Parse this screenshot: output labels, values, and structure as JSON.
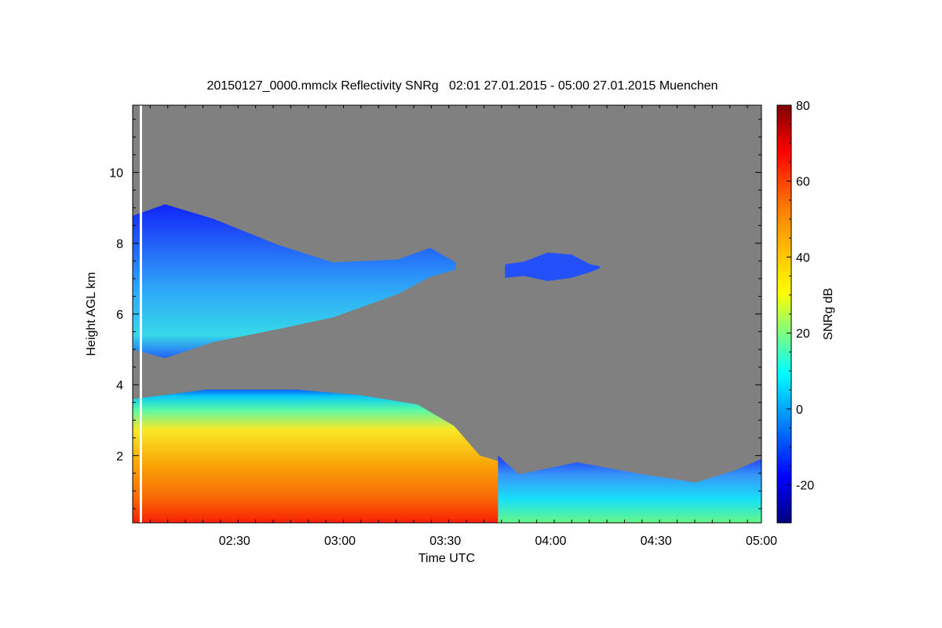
{
  "chart_data": {
    "type": "heatmap",
    "title": "20150127_0000.mmclx Reflectivity SNRg   02:01 27.01.2015 - 05:00 27.01.2015 Muenchen",
    "xlabel": "Time UTC",
    "ylabel": "Height AGL km",
    "xlim": [
      "02:01",
      "05:00"
    ],
    "ylim": [
      0.1,
      11.9
    ],
    "x_ticks": [
      "02:30",
      "03:00",
      "03:30",
      "04:00",
      "04:30",
      "05:00"
    ],
    "y_ticks": [
      2,
      4,
      6,
      8,
      10
    ],
    "colorbar": {
      "label": "SNRg dB",
      "range": [
        -30,
        80
      ],
      "ticks": [
        -20,
        0,
        20,
        40,
        60,
        80
      ],
      "colormap": "jet"
    },
    "background_color": "#808080",
    "features": [
      {
        "layer": "upper ice cloud",
        "time_start": "02:01",
        "time_end": "03:33",
        "base_km": 5.0,
        "top_km": 9.1,
        "snr_db_range": [
          -20,
          10
        ]
      },
      {
        "layer": "isolated cloud patch",
        "time_start": "03:47",
        "time_end": "04:14",
        "base_km": 6.8,
        "top_km": 7.9,
        "snr_db_range": [
          -20,
          0
        ]
      },
      {
        "layer": "low precipitating cloud",
        "time_start": "02:01",
        "time_end": "03:45",
        "base_km": 0.1,
        "top_km": 3.9,
        "snr_db_range": [
          0,
          60
        ]
      },
      {
        "layer": "boundary layer cloud",
        "time_start": "03:45",
        "time_end": "05:00",
        "base_km": 0.1,
        "top_km": 2.0,
        "snr_db_range": [
          -20,
          20
        ]
      }
    ]
  }
}
